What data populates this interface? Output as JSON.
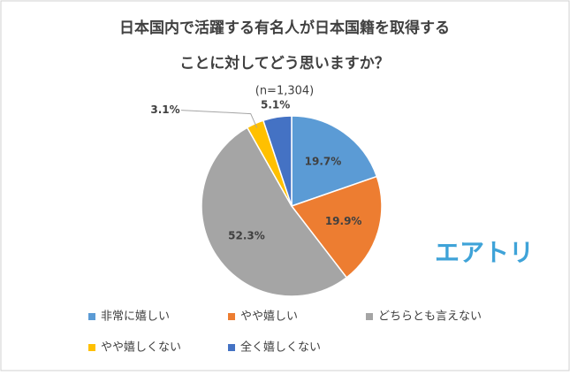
{
  "chart_data": {
    "type": "pie",
    "title": [
      "日本国内で活躍する有名人が日本国籍を取得する",
      "ことに対してどう思いますか？"
    ],
    "subtitle": "(n=1,304)",
    "categories": [
      "非常に嬉しい",
      "やや嬉しい",
      "どちらとも言えない",
      "やや嬉しくない",
      "全く嬉しくない"
    ],
    "values": [
      19.7,
      19.9,
      52.3,
      3.1,
      5.1
    ],
    "value_labels": [
      "19.7%",
      "19.9%",
      "52.3%",
      "3.1%",
      "5.1%"
    ],
    "colors": [
      "#5b9bd5",
      "#ed7d31",
      "#a5a5a5",
      "#ffc000",
      "#4472c4"
    ],
    "legend": "bottom",
    "logo": "エアトリ"
  }
}
